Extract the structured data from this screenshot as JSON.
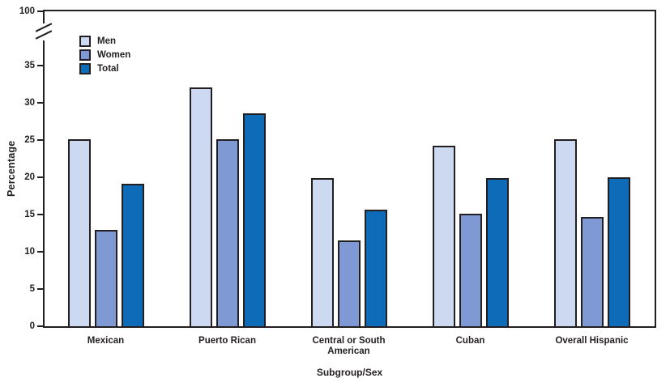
{
  "figure": {
    "background": "#ffffff",
    "text_color": "#231f20",
    "frame_color": "#231f20"
  },
  "chart_data": {
    "type": "bar",
    "title": "",
    "xlabel": "Subgroup/Sex",
    "ylabel": "Percentage",
    "categories": [
      "Mexican",
      "Puerto Rican",
      "Central or South American",
      "Cuban",
      "Overall Hispanic"
    ],
    "series": [
      {
        "name": "Men",
        "color": "#ccd9f1",
        "values": [
          25.1,
          32.1,
          19.9,
          24.2,
          25.1
        ]
      },
      {
        "name": "Women",
        "color": "#7e99d4",
        "values": [
          12.9,
          25.1,
          11.5,
          15.1,
          14.7
        ]
      },
      {
        "name": "Total",
        "color": "#0e6bb8",
        "values": [
          19.1,
          28.6,
          15.6,
          19.9,
          20.0
        ]
      }
    ],
    "y_axis": {
      "ticks": [
        0,
        5,
        10,
        15,
        20,
        25,
        30,
        35
      ],
      "axis_break_after": 35,
      "top_tick_label": "100",
      "range_shown": [
        0,
        35
      ]
    },
    "legend": {
      "position": "top-left-inside",
      "entries": [
        "Men",
        "Women",
        "Total"
      ]
    },
    "grid": false,
    "plot_frame": true
  }
}
